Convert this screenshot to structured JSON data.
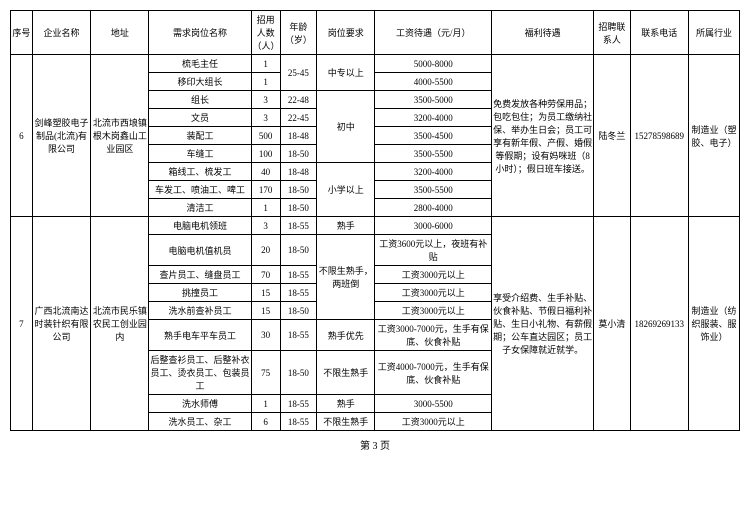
{
  "headers": [
    "序号",
    "企业名称",
    "地址",
    "需求岗位名称",
    "招用人数（人）",
    "年龄（岁）",
    "岗位要求",
    "工资待遇（元/月）",
    "福利待遇",
    "招聘联系人",
    "联系电话",
    "所属行业"
  ],
  "footer": "第 3 页",
  "company6": {
    "seq": "6",
    "name": "剑峰塑胶电子制品(北流)有限公司",
    "addr": "北流市西埌镇根木岗鑫山工业园区",
    "benefit": "免费发放各种劳保用品；包吃包住；为员工缴纳社保、举办生日会；员工可享有新年假、产假、婚假等假期；设有妈咪班（8小时）；假日班车接送。",
    "contact": "陆冬兰",
    "tel": "15278598689",
    "industry": "制造业（塑胶、电子）",
    "rows": [
      {
        "pos": "梳毛主任",
        "num": "1",
        "age": "25-45",
        "req": "中专以上",
        "sal": "5000-8000"
      },
      {
        "pos": "移印大组长",
        "num": "1",
        "age": "",
        "req": "",
        "sal": "4000-5500"
      },
      {
        "pos": "组长",
        "num": "3",
        "age": "22-48",
        "req": "初中",
        "sal": "3500-5000"
      },
      {
        "pos": "文员",
        "num": "3",
        "age": "22-45",
        "req": "",
        "sal": "3200-4000"
      },
      {
        "pos": "装配工",
        "num": "500",
        "age": "18-48",
        "req": "",
        "sal": "3500-4500"
      },
      {
        "pos": "车缝工",
        "num": "100",
        "age": "18-50",
        "req": "",
        "sal": "3500-5500"
      },
      {
        "pos": "箱线工、梳发工",
        "num": "40",
        "age": "18-48",
        "req": "小学以上",
        "sal": "3200-4000"
      },
      {
        "pos": "车发工、喷油工、啤工",
        "num": "170",
        "age": "18-50",
        "req": "",
        "sal": "3500-5500"
      },
      {
        "pos": "清洁工",
        "num": "1",
        "age": "18-50",
        "req": "",
        "sal": "2800-4000"
      }
    ]
  },
  "company7": {
    "seq": "7",
    "name": "广西北流南达时装针织有限公司",
    "addr": "北流市民乐镇农民工创业园内",
    "benefit": "享受介绍费、生手补贴、伙食补贴、节假日福利补贴、生日小礼物、有薪假期；公车直达园区；员工子女保障就近就学。",
    "contact": "莫小清",
    "tel": "18269269133",
    "industry": "制造业（纺织服装、服饰业）",
    "rows": [
      {
        "pos": "电脑电机领班",
        "num": "3",
        "age": "18-55",
        "req": "熟手",
        "sal": "3000-6000"
      },
      {
        "pos": "电脑电机值机员",
        "num": "20",
        "age": "18-50",
        "req": "不限生熟手，两班倒",
        "sal": "工资3600元以上，夜班有补贴"
      },
      {
        "pos": "查片员工、缝盘员工",
        "num": "70",
        "age": "18-55",
        "req": "",
        "sal": "工资3000元以上"
      },
      {
        "pos": "挑撞员工",
        "num": "15",
        "age": "18-55",
        "req": "",
        "sal": "工资3000元以上"
      },
      {
        "pos": "洗水前查补员工",
        "num": "15",
        "age": "18-50",
        "req": "",
        "sal": "工资3000元以上"
      },
      {
        "pos": "熟手电车平车员工",
        "num": "30",
        "age": "18-55",
        "req": "熟手优先",
        "sal": "工资3000-7000元，生手有保底、伙食补贴"
      },
      {
        "pos": "后整查衫员工、后整补衣员工、烫衣员工、包装员工",
        "num": "75",
        "age": "18-50",
        "req": "不限生熟手",
        "sal": "工资4000-7000元，生手有保底、伙食补贴"
      },
      {
        "pos": "洗水师傅",
        "num": "1",
        "age": "18-55",
        "req": "熟手",
        "sal": "3000-5500"
      },
      {
        "pos": "洗水员工、杂工",
        "num": "6",
        "age": "18-55",
        "req": "不限生熟手",
        "sal": "工资3000元以上"
      }
    ]
  }
}
